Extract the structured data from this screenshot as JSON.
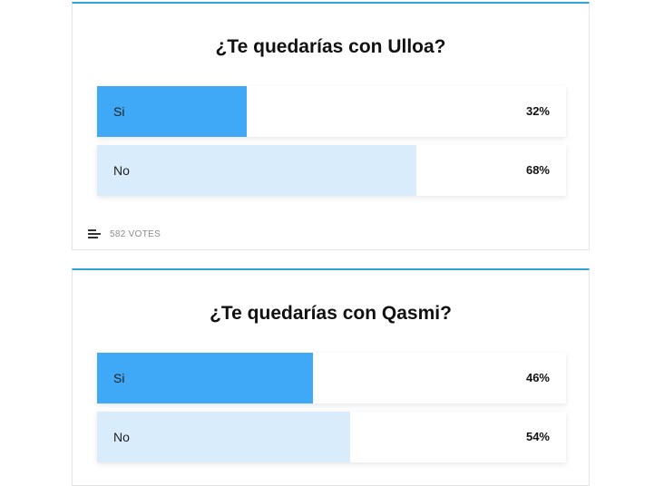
{
  "colors": {
    "accent_border": "#2ea3d4",
    "leading_fill": "#40a9f7",
    "other_fill": "#d8ecfb"
  },
  "polls": [
    {
      "title": "¿Te quedarías con Ulloa?",
      "options": [
        {
          "label": "Si",
          "percent_label": "32%",
          "percent": 32,
          "leading": false
        },
        {
          "label": "No",
          "percent_label": "68%",
          "percent": 68,
          "leading": true
        }
      ],
      "votes_label": "582 VOTES",
      "icon": "bar-list-icon"
    },
    {
      "title": "¿Te quedarías con Qasmi?",
      "options": [
        {
          "label": "Si",
          "percent_label": "46%",
          "percent": 46,
          "leading": false
        },
        {
          "label": "No",
          "percent_label": "54%",
          "percent": 54,
          "leading": true
        }
      ]
    }
  ]
}
